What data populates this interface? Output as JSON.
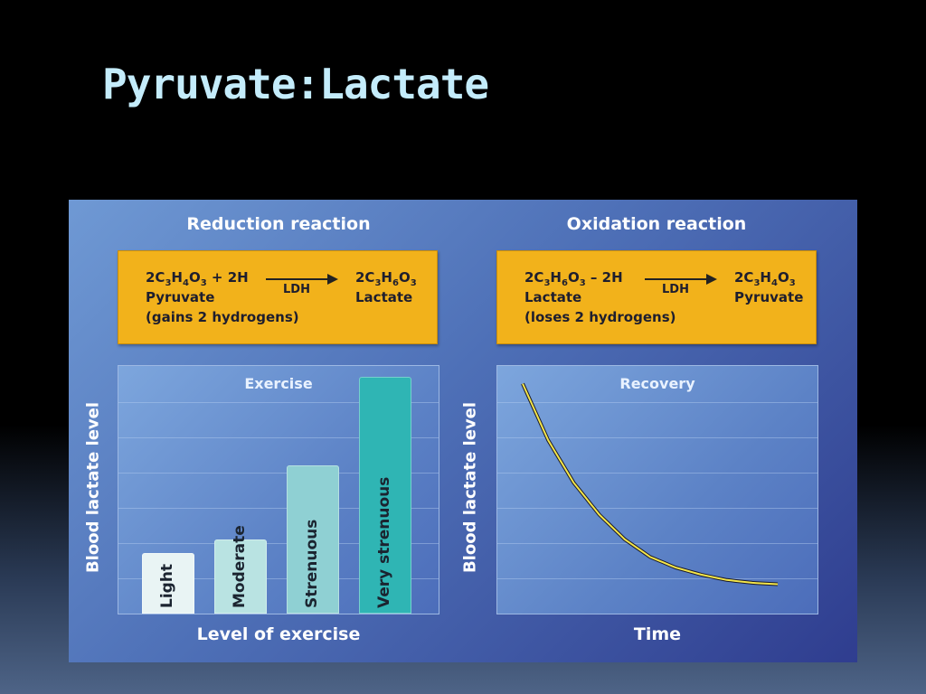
{
  "slide": {
    "title": "Pyruvate:Lactate"
  },
  "reduction": {
    "title": "Reduction reaction",
    "reactant": {
      "coef": "2C",
      "a": "3",
      "b": "H",
      "c": "4",
      "d": "O",
      "e": "3",
      "extra": " + 2H"
    },
    "enzyme": "LDH",
    "product": {
      "coef": "2C",
      "a": "3",
      "b": "H",
      "c": "6",
      "d": "O",
      "e": "3"
    },
    "reactant_name": "Pyruvate",
    "product_name": "Lactate",
    "note": "(gains 2 hydrogens)"
  },
  "oxidation": {
    "title": "Oxidation reaction",
    "reactant": {
      "coef": "2C",
      "a": "3",
      "b": "H",
      "c": "6",
      "d": "O",
      "e": "3",
      "extra": " – 2H"
    },
    "enzyme": "LDH",
    "product": {
      "coef": "2C",
      "a": "3",
      "b": "H",
      "c": "4",
      "d": "O",
      "e": "3"
    },
    "reactant_name": "Lactate",
    "product_name": "Pyruvate",
    "note": "(loses 2 hydrogens)"
  },
  "chart_data": [
    {
      "type": "bar",
      "title": "Exercise",
      "xlabel": "Level of exercise",
      "ylabel": "Blood lactate level",
      "categories": [
        "Light",
        "Moderate",
        "Strenuous",
        "Very strenuous"
      ],
      "values": [
        1.7,
        2.1,
        4.2,
        6.7
      ],
      "ylim": [
        0,
        7
      ],
      "colors": [
        "#e9f4f4",
        "#b9e3e2",
        "#8fd0d3",
        "#2fb5b4"
      ],
      "grid": true
    },
    {
      "type": "line",
      "title": "Recovery",
      "xlabel": "Time",
      "ylabel": "Blood lactate level",
      "x": [
        0,
        1,
        2,
        3,
        4,
        5,
        6,
        7,
        8,
        9,
        10
      ],
      "y": [
        6.5,
        4.9,
        3.7,
        2.8,
        2.1,
        1.6,
        1.3,
        1.1,
        0.95,
        0.87,
        0.83
      ],
      "ylim": [
        0,
        7
      ],
      "line_color": "#f4e64a",
      "grid": true
    }
  ]
}
